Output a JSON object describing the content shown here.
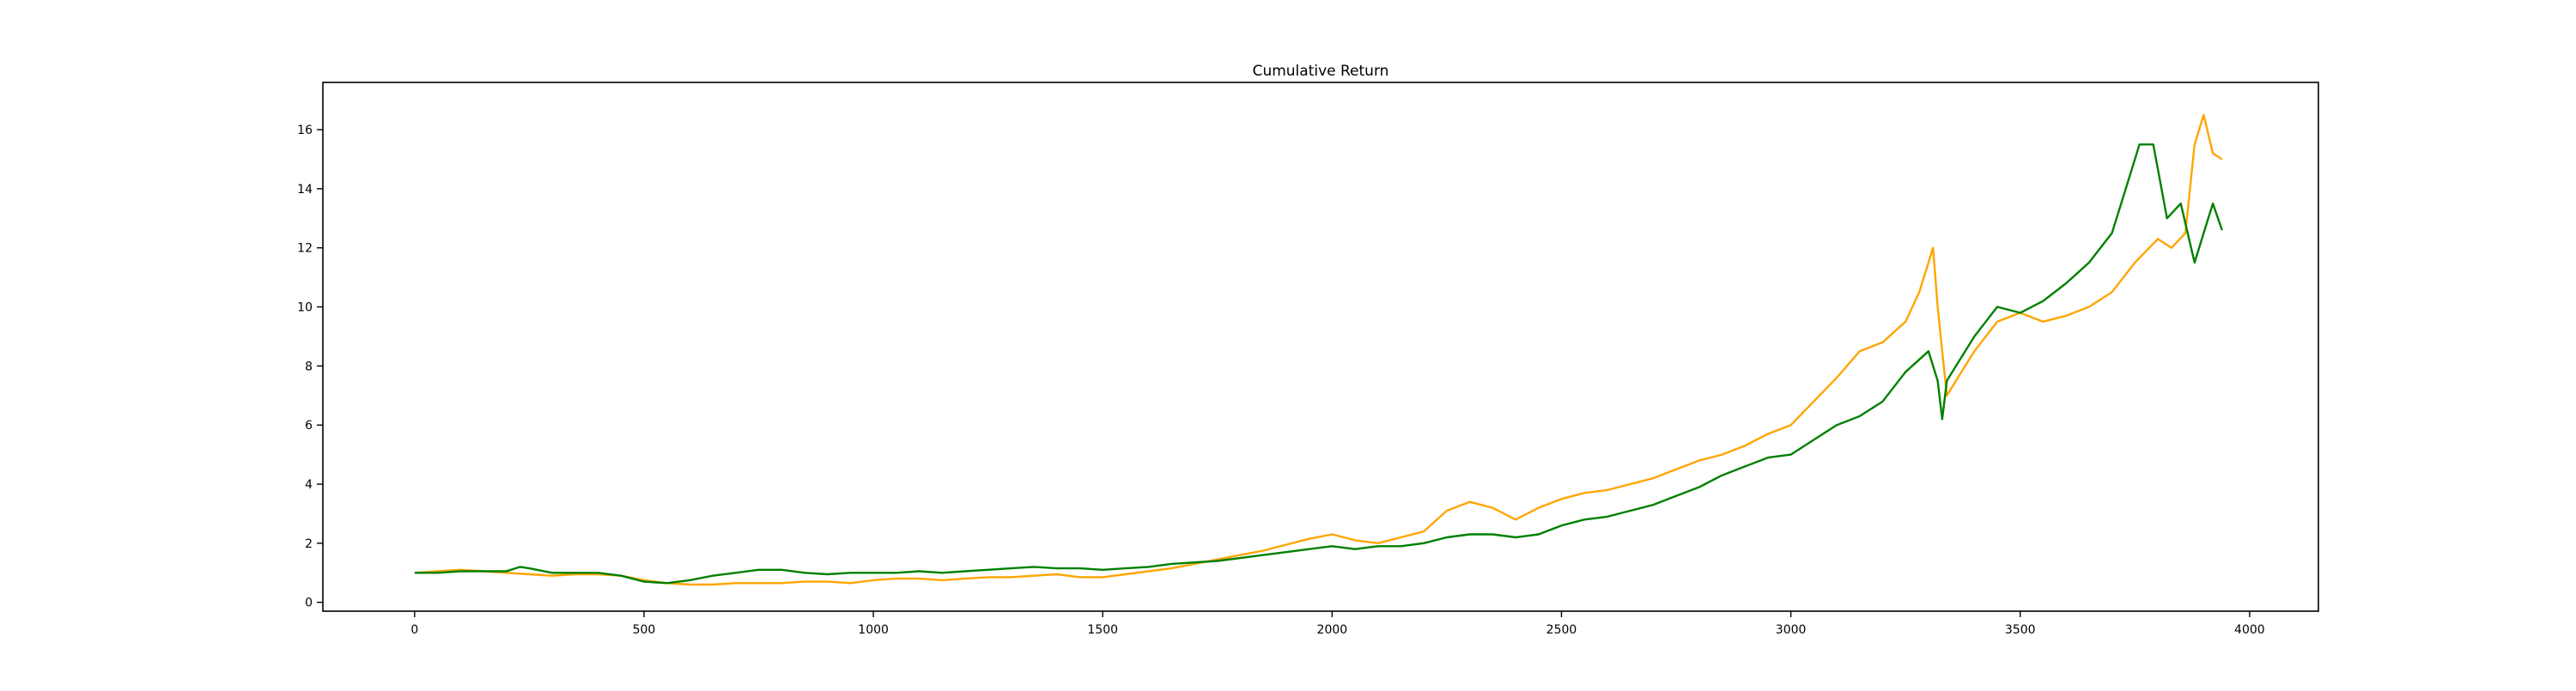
{
  "chart_data": {
    "type": "line",
    "title": "Cumulative Return",
    "xlabel": "",
    "ylabel": "",
    "xlim": [
      -200,
      4150
    ],
    "ylim": [
      -0.3,
      17.6
    ],
    "x_ticks": [
      0,
      500,
      1000,
      1500,
      2000,
      2500,
      3000,
      3500,
      4000
    ],
    "y_ticks": [
      0,
      2,
      4,
      6,
      8,
      10,
      12,
      14,
      16
    ],
    "grid": false,
    "legend": "none",
    "series": [
      {
        "color": "#ffa500",
        "x": [
          0,
          50,
          100,
          150,
          200,
          250,
          300,
          350,
          400,
          450,
          500,
          550,
          600,
          650,
          700,
          750,
          800,
          850,
          900,
          950,
          1000,
          1050,
          1100,
          1150,
          1200,
          1250,
          1300,
          1350,
          1400,
          1450,
          1500,
          1550,
          1600,
          1650,
          1700,
          1750,
          1800,
          1850,
          1900,
          1950,
          2000,
          2050,
          2100,
          2150,
          2200,
          2250,
          2300,
          2350,
          2400,
          2450,
          2500,
          2550,
          2600,
          2650,
          2700,
          2750,
          2800,
          2850,
          2900,
          2950,
          3000,
          3050,
          3100,
          3150,
          3200,
          3250,
          3280,
          3300,
          3310,
          3320,
          3330,
          3340,
          3360,
          3400,
          3450,
          3500,
          3550,
          3600,
          3650,
          3700,
          3750,
          3800,
          3830,
          3860,
          3880,
          3900,
          3920,
          3940
        ],
        "y": [
          1.0,
          1.05,
          1.1,
          1.05,
          1.0,
          0.95,
          0.9,
          0.95,
          0.95,
          0.9,
          0.75,
          0.65,
          0.6,
          0.6,
          0.65,
          0.65,
          0.65,
          0.7,
          0.7,
          0.65,
          0.75,
          0.8,
          0.8,
          0.75,
          0.8,
          0.85,
          0.85,
          0.9,
          0.95,
          0.85,
          0.85,
          0.95,
          1.05,
          1.15,
          1.3,
          1.45,
          1.6,
          1.75,
          1.95,
          2.15,
          2.3,
          2.1,
          2.0,
          2.2,
          2.4,
          3.1,
          3.4,
          3.2,
          2.8,
          3.2,
          3.5,
          3.7,
          3.8,
          4.0,
          4.2,
          4.5,
          4.8,
          5.0,
          5.3,
          5.7,
          6.0,
          6.8,
          7.6,
          8.5,
          8.8,
          9.5,
          10.5,
          11.5,
          12.0,
          10.0,
          8.5,
          7.0,
          7.5,
          8.5,
          9.5,
          9.8,
          9.5,
          9.7,
          10.0,
          10.5,
          11.5,
          12.3,
          12.0,
          12.5,
          15.5,
          16.5,
          15.2,
          15.0
        ]
      },
      {
        "color": "#008000",
        "x": [
          0,
          50,
          100,
          150,
          200,
          230,
          250,
          300,
          350,
          400,
          450,
          500,
          550,
          600,
          650,
          700,
          750,
          800,
          850,
          900,
          950,
          1000,
          1050,
          1100,
          1150,
          1200,
          1250,
          1300,
          1350,
          1400,
          1450,
          1500,
          1550,
          1600,
          1650,
          1700,
          1750,
          1800,
          1850,
          1900,
          1950,
          2000,
          2050,
          2100,
          2150,
          2200,
          2250,
          2300,
          2350,
          2400,
          2450,
          2500,
          2550,
          2600,
          2650,
          2700,
          2750,
          2800,
          2850,
          2900,
          2950,
          3000,
          3050,
          3100,
          3150,
          3200,
          3250,
          3300,
          3320,
          3330,
          3340,
          3360,
          3400,
          3450,
          3500,
          3550,
          3600,
          3650,
          3700,
          3740,
          3760,
          3790,
          3820,
          3850,
          3880,
          3900,
          3920,
          3940
        ],
        "y": [
          1.0,
          1.0,
          1.05,
          1.05,
          1.05,
          1.2,
          1.15,
          1.0,
          1.0,
          1.0,
          0.9,
          0.7,
          0.65,
          0.75,
          0.9,
          1.0,
          1.1,
          1.1,
          1.0,
          0.95,
          1.0,
          1.0,
          1.0,
          1.05,
          1.0,
          1.05,
          1.1,
          1.15,
          1.2,
          1.15,
          1.15,
          1.1,
          1.15,
          1.2,
          1.3,
          1.35,
          1.4,
          1.5,
          1.6,
          1.7,
          1.8,
          1.9,
          1.8,
          1.9,
          1.9,
          2.0,
          2.2,
          2.3,
          2.3,
          2.2,
          2.3,
          2.6,
          2.8,
          2.9,
          3.1,
          3.3,
          3.6,
          3.9,
          4.3,
          4.6,
          4.9,
          5.0,
          5.5,
          6.0,
          6.3,
          6.8,
          7.8,
          8.5,
          7.5,
          6.2,
          7.5,
          8.0,
          9.0,
          10.0,
          9.8,
          10.2,
          10.8,
          11.5,
          12.5,
          14.5,
          15.5,
          15.5,
          13.0,
          13.5,
          11.5,
          12.5,
          13.5,
          12.6
        ]
      }
    ]
  }
}
